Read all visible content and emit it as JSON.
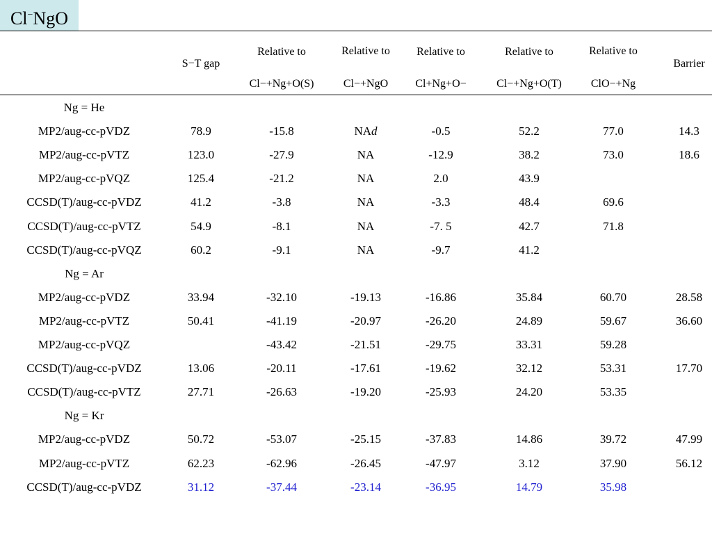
{
  "title": {
    "main": "Cl",
    "sup": "−",
    "rest": "NgO"
  },
  "header": {
    "col1": "S−T gap",
    "col2_top": "Relative to",
    "col2_bottom": "Cl−+Ng+O(S)",
    "col3_top": "Relative to",
    "col3_bottom": "Cl−+NgO",
    "col4_top": "Relative to",
    "col4_bottom": "Cl+Ng+O−",
    "col5_top": "Relative to",
    "col5_bottom": "Cl−+Ng+O(T)",
    "col6_top": "Relative to",
    "col6_bottom": "ClO−+Ng",
    "col7": "Barrier"
  },
  "rows": [
    {
      "label": "Ng = He",
      "group": true,
      "values": [
        "",
        "",
        "",
        "",
        "",
        "",
        ""
      ]
    },
    {
      "label": "MP2/aug-cc-pVDZ",
      "values": [
        "78.9",
        "-15.8",
        "NA",
        "-0.5",
        "52.2",
        "77.0",
        "14.3"
      ],
      "na_suffix": "d"
    },
    {
      "label": "MP2/aug-cc-pVTZ",
      "values": [
        "123.0",
        "-27.9",
        "NA",
        "-12.9",
        "38.2",
        "73.0",
        "18.6"
      ]
    },
    {
      "label": "MP2/aug-cc-pVQZ",
      "values": [
        "125.4",
        "-21.2",
        "NA",
        "2.0",
        "43.9",
        "",
        ""
      ]
    },
    {
      "label": "CCSD(T)/aug-cc-pVDZ",
      "values": [
        "41.2",
        "-3.8",
        "NA",
        "-3.3",
        "48.4",
        "69.6",
        ""
      ]
    },
    {
      "label": "CCSD(T)/aug-cc-pVTZ",
      "values": [
        "54.9",
        "-8.1",
        "NA",
        "-7. 5",
        "42.7",
        "71.8",
        ""
      ]
    },
    {
      "label": "CCSD(T)/aug-cc-pVQZ",
      "values": [
        "60.2",
        "-9.1",
        "NA",
        "-9.7",
        "41.2",
        "",
        ""
      ]
    },
    {
      "label": "Ng = Ar",
      "group": true,
      "values": [
        "",
        "",
        "",
        "",
        "",
        "",
        ""
      ]
    },
    {
      "label": "MP2/aug-cc-pVDZ",
      "values": [
        "33.94",
        "-32.10",
        "-19.13",
        "-16.86",
        "35.84",
        "60.70",
        "28.58"
      ]
    },
    {
      "label": "MP2/aug-cc-pVTZ",
      "values": [
        "50.41",
        "-41.19",
        "-20.97",
        "-26.20",
        "24.89",
        "59.67",
        "36.60"
      ]
    },
    {
      "label": "MP2/aug-cc-pVQZ",
      "values": [
        "",
        "-43.42",
        "-21.51",
        "-29.75",
        "33.31",
        "59.28",
        ""
      ]
    },
    {
      "label": "CCSD(T)/aug-cc-pVDZ",
      "values": [
        "13.06",
        "-20.11",
        "-17.61",
        "-19.62",
        "32.12",
        "53.31",
        "17.70"
      ]
    },
    {
      "label": "CCSD(T)/aug-cc-pVTZ",
      "values": [
        "27.71",
        "-26.63",
        "-19.20",
        "-25.93",
        "24.20",
        "53.35",
        ""
      ]
    },
    {
      "label": "Ng = Kr",
      "group": true,
      "values": [
        "",
        "",
        "",
        "",
        "",
        "",
        ""
      ]
    },
    {
      "label": "MP2/aug-cc-pVDZ",
      "values": [
        "50.72",
        "-53.07",
        "-25.15",
        "-37.83",
        "14.86",
        "39.72",
        "47.99"
      ]
    },
    {
      "label": "MP2/aug-cc-pVTZ",
      "values": [
        "62.23",
        "-62.96",
        "-26.45",
        "-47.97",
        "3.12",
        "37.90",
        "56.12"
      ]
    },
    {
      "label": "CCSD(T)/aug-cc-pVDZ",
      "values": [
        "31.12",
        "-37.44",
        "-23.14",
        "-36.95",
        "14.79",
        "35.98",
        ""
      ],
      "highlight": true
    }
  ],
  "colors": {
    "highlight": "#1f1fd0",
    "title_bg": "#cde9ec"
  }
}
